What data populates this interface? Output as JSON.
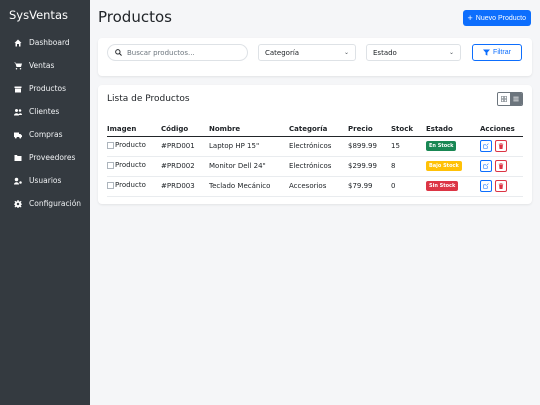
{
  "sidebar": {
    "brand": "SysVentas",
    "items": [
      {
        "label": "Dashboard",
        "icon": "home-icon"
      },
      {
        "label": "Ventas",
        "icon": "cart-icon"
      },
      {
        "label": "Productos",
        "icon": "box-icon"
      },
      {
        "label": "Clientes",
        "icon": "users-icon"
      },
      {
        "label": "Compras",
        "icon": "truck-icon"
      },
      {
        "label": "Proveedores",
        "icon": "building-icon"
      },
      {
        "label": "Usuarios",
        "icon": "user-cog-icon"
      },
      {
        "label": "Configuración",
        "icon": "gear-icon"
      }
    ]
  },
  "header": {
    "title": "Productos",
    "new_button": "Nuevo Producto"
  },
  "filters": {
    "search_placeholder": "Buscar productos...",
    "category": "Categoría",
    "status": "Estado",
    "filter_button": "Filtrar"
  },
  "list": {
    "title": "Lista de Productos",
    "columns": [
      "Imagen",
      "Código",
      "Nombre",
      "Categoría",
      "Precio",
      "Stock",
      "Estado",
      "Acciones"
    ],
    "rows": [
      {
        "img_alt": "Producto",
        "code": "#PRD001",
        "name": "Laptop HP 15\"",
        "category": "Electrónicos",
        "price": "$899.99",
        "stock": "15",
        "status": "En Stock",
        "status_color": "#198754"
      },
      {
        "img_alt": "Producto",
        "code": "#PRD002",
        "name": "Monitor Dell 24\"",
        "category": "Electrónicos",
        "price": "$299.99",
        "stock": "8",
        "status": "Bajo Stock",
        "status_color": "#ffc107"
      },
      {
        "img_alt": "Producto",
        "code": "#PRD003",
        "name": "Teclado Mecánico",
        "category": "Accesorios",
        "price": "$79.99",
        "stock": "0",
        "status": "Sin Stock",
        "status_color": "#dc3545"
      }
    ]
  },
  "colors": {
    "sidebar_bg": "#343a40",
    "primary": "#0d6efd",
    "danger": "#dc3545",
    "success": "#198754",
    "warning": "#ffc107"
  }
}
